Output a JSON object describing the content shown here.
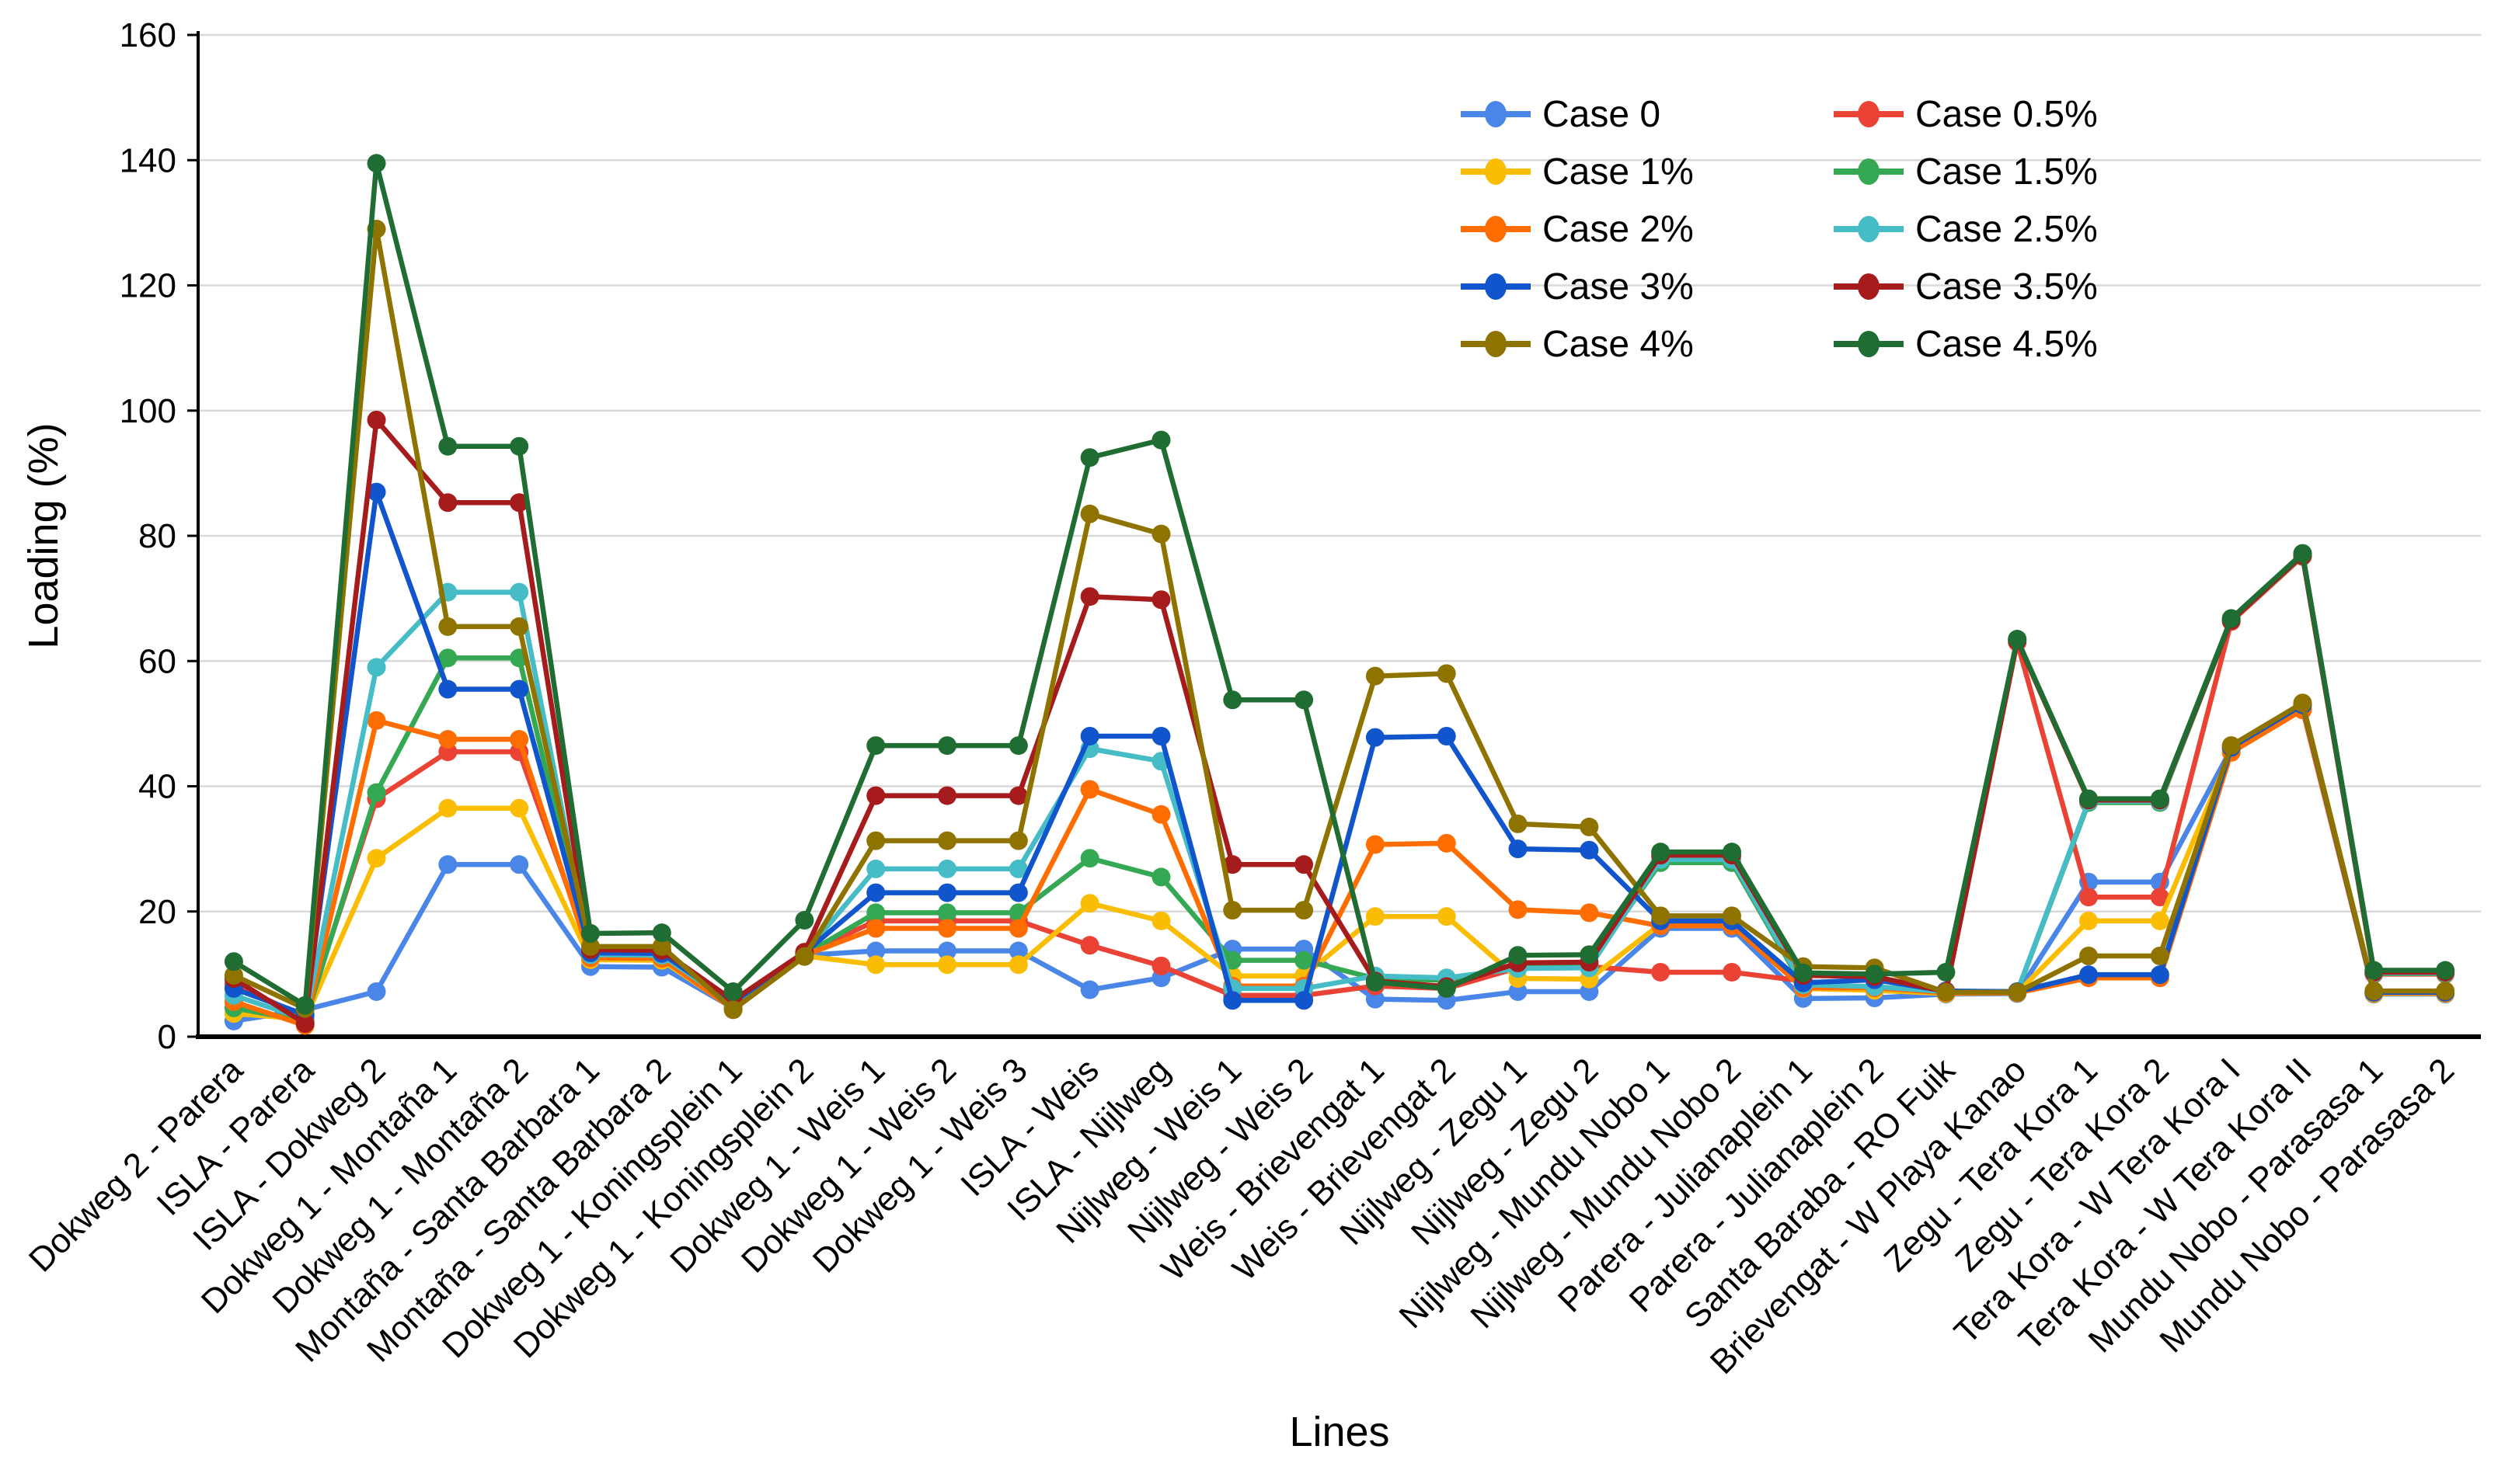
{
  "chart_data": {
    "type": "line",
    "title": "",
    "xlabel": "Lines",
    "ylabel": "Loading (%)",
    "ylim": [
      0,
      160
    ],
    "ytick_step": 20,
    "ytick_labels": [
      "0",
      "20",
      "40",
      "60",
      "80",
      "100",
      "120",
      "140",
      "160"
    ],
    "grid": "horizontal gridlines, light gray",
    "legend_position": "top-right inside plot, 2 columns, 5 rows",
    "background": "#ffffff",
    "gridline_color": "#d9d9d9",
    "axis_color": "#000000",
    "categories": [
      "Dokweg 2 - Parera",
      "ISLA - Parera",
      "ISLA - Dokweg 2",
      "Dokweg 1 - Montaña 1",
      "Dokweg 1 - Montaña 2",
      "Montaña - Santa Barbara 1",
      "Montaña - Santa Barbara 2",
      "Dokweg 1 - Koningsplein 1",
      "Dokweg 1 - Koningsplein 2",
      "Dokweg 1 - Weis 1",
      "Dokweg 1 - Weis 2",
      "Dokweg 1 - Weis 3",
      "ISLA - Weis",
      "ISLA - Nijlweg",
      "Nijlweg - Weis 1",
      "Nijlweg - Weis 2",
      "Weis - Brievengat 1",
      "Weis - Brievengat 2",
      "Nijlweg - Zegu 1",
      "Nijlweg - Zegu 2",
      "Nijlweg - Mundu Nobo 1",
      "Nijlweg - Mundu Nobo 2",
      "Parera - Julianaplein 1",
      "Parera - Julianaplein 2",
      "Santa Baraba - RO Fuik",
      "Brievengat - W Playa Kanao",
      "Zegu - Tera Kora 1",
      "Zegu - Tera Kora 2",
      "Tera Kora - W Tera Kora I",
      "Tera Kora - W Tera Kora II",
      "Mundu Nobo - Parasasa 1",
      "Mundu Nobo - Parasasa 2"
    ],
    "series": [
      {
        "name": "Case 0",
        "color": "#4a86e8",
        "values": [
          2.5,
          4.3,
          7.2,
          27.5,
          27.5,
          11.2,
          11.1,
          4.6,
          13.0,
          13.7,
          13.7,
          13.7,
          7.5,
          9.4,
          14.0,
          14.0,
          6.0,
          5.8,
          7.2,
          7.2,
          17.3,
          17.3,
          6.1,
          6.2,
          6.8,
          6.9,
          24.7,
          24.7,
          46.0,
          52.8,
          6.8,
          6.8
        ]
      },
      {
        "name": "Case 0.5%",
        "color": "#ea4335",
        "values": [
          8.4,
          3.1,
          38.0,
          45.5,
          45.5,
          13.6,
          13.5,
          5.0,
          13.2,
          18.5,
          18.5,
          18.5,
          14.6,
          11.3,
          6.6,
          6.6,
          8.1,
          7.7,
          11.0,
          11.2,
          10.3,
          10.3,
          8.9,
          7.6,
          7.1,
          63.0,
          22.3,
          22.3,
          66.3,
          76.7,
          10.0,
          10.0
        ]
      },
      {
        "name": "Case 1%",
        "color": "#fbbc04",
        "values": [
          3.7,
          2.8,
          28.5,
          36.5,
          36.5,
          12.3,
          12.2,
          4.5,
          12.9,
          11.5,
          11.5,
          11.5,
          21.3,
          18.5,
          9.7,
          9.7,
          19.2,
          19.2,
          9.3,
          9.2,
          18.0,
          18.0,
          7.7,
          7.4,
          6.9,
          7.0,
          18.5,
          18.5,
          45.7,
          52.5,
          6.9,
          6.9
        ]
      },
      {
        "name": "Case 1.5%",
        "color": "#34a853",
        "values": [
          4.6,
          2.5,
          39.0,
          60.5,
          60.5,
          12.9,
          12.8,
          4.8,
          13.1,
          19.8,
          19.8,
          19.8,
          28.5,
          25.5,
          12.2,
          12.2,
          9.3,
          9.0,
          11.4,
          11.5,
          27.8,
          27.8,
          8.0,
          7.8,
          7.1,
          7.1,
          37.4,
          37.4,
          66.5,
          76.8,
          10.1,
          10.1
        ]
      },
      {
        "name": "Case 2%",
        "color": "#ff6d01",
        "values": [
          5.6,
          1.8,
          50.5,
          47.5,
          47.5,
          12.6,
          12.5,
          4.4,
          13.0,
          17.3,
          17.3,
          17.3,
          39.5,
          35.5,
          8.1,
          8.1,
          30.7,
          30.9,
          20.3,
          19.8,
          17.7,
          17.7,
          7.8,
          7.8,
          7.0,
          7.0,
          9.4,
          9.4,
          45.4,
          52.2,
          7.0,
          7.0
        ]
      },
      {
        "name": "Case 2.5%",
        "color": "#46bdc6",
        "values": [
          6.6,
          2.8,
          59.0,
          71.0,
          71.0,
          13.1,
          13.0,
          5.2,
          13.3,
          26.8,
          26.8,
          26.8,
          46.0,
          44.0,
          7.7,
          7.7,
          9.7,
          9.4,
          10.9,
          11.0,
          28.3,
          28.3,
          8.3,
          8.0,
          7.2,
          7.2,
          37.6,
          37.6,
          66.7,
          77.0,
          10.2,
          10.2
        ]
      },
      {
        "name": "Case 3%",
        "color": "#1155cc",
        "values": [
          7.7,
          3.5,
          87.0,
          55.5,
          55.5,
          13.4,
          13.3,
          5.5,
          13.4,
          23.0,
          23.0,
          23.0,
          48.0,
          48.0,
          5.8,
          5.8,
          47.8,
          48.0,
          30.0,
          29.8,
          18.5,
          18.5,
          8.6,
          9.1,
          7.3,
          7.2,
          9.9,
          9.9,
          46.2,
          53.0,
          7.1,
          7.1
        ]
      },
      {
        "name": "Case 3.5%",
        "color": "#a61c1c",
        "values": [
          9.3,
          2.1,
          98.5,
          85.3,
          85.3,
          13.9,
          13.8,
          5.8,
          13.5,
          38.5,
          38.5,
          38.5,
          70.3,
          69.8,
          27.5,
          27.5,
          8.9,
          8.0,
          11.8,
          11.9,
          29.0,
          29.0,
          9.8,
          9.6,
          7.2,
          63.3,
          37.8,
          37.8,
          66.5,
          76.9,
          10.3,
          10.3
        ]
      },
      {
        "name": "Case 4%",
        "color": "#8f7300",
        "values": [
          9.8,
          4.5,
          129.0,
          65.5,
          65.5,
          14.4,
          14.4,
          4.3,
          12.8,
          31.3,
          31.3,
          31.3,
          83.5,
          80.3,
          20.2,
          20.2,
          57.6,
          58.0,
          34.0,
          33.5,
          19.3,
          19.3,
          11.2,
          11.0,
          7.1,
          7.1,
          12.9,
          12.9,
          46.5,
          53.3,
          7.3,
          7.3
        ]
      },
      {
        "name": "Case 4.5%",
        "color": "#1f6d33",
        "values": [
          12.0,
          5.0,
          139.5,
          94.3,
          94.3,
          16.5,
          16.6,
          7.2,
          18.6,
          46.5,
          46.5,
          46.5,
          92.5,
          95.3,
          53.8,
          53.8,
          8.7,
          7.7,
          13.0,
          13.1,
          29.5,
          29.5,
          10.2,
          10.0,
          10.3,
          63.5,
          38.0,
          38.0,
          66.8,
          77.2,
          10.6,
          10.6
        ]
      }
    ]
  }
}
